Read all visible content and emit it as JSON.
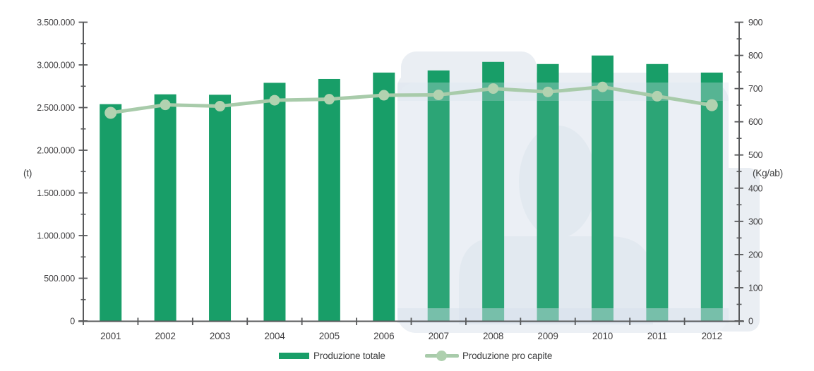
{
  "chart_data": {
    "type": "bar+line",
    "title": "",
    "categories": [
      "2001",
      "2002",
      "2003",
      "2004",
      "2005",
      "2006",
      "2007",
      "2008",
      "2009",
      "2010",
      "2011",
      "2012"
    ],
    "series": [
      {
        "name": "Produzione totale",
        "type": "bar",
        "axis": "left",
        "unit": "t",
        "color": "#189e68",
        "values": [
          2540000,
          2655000,
          2650000,
          2790000,
          2835000,
          2910000,
          2935000,
          3035000,
          3010000,
          3110000,
          3010000,
          2910000
        ]
      },
      {
        "name": "Produzione pro capite",
        "type": "line",
        "axis": "right",
        "unit": "Kg/ab",
        "color": "#a8cbaa",
        "marker_color": "#b2d2b0",
        "values": [
          627,
          651,
          647,
          665,
          668,
          680,
          681,
          700,
          690,
          705,
          677,
          650
        ]
      }
    ],
    "left_axis": {
      "label": "(t)",
      "min": 0,
      "max": 3500000,
      "major_step": 500000,
      "minor_step": 250000,
      "tick_labels": [
        "0",
        "500.000",
        "1.000.000",
        "1.500.000",
        "2.000.000",
        "2.500.000",
        "3.000.000",
        "3.500.000"
      ]
    },
    "right_axis": {
      "label": "(Kg/ab)",
      "min": 0,
      "max": 900,
      "major_step": 100,
      "minor_step": 50,
      "tick_labels": [
        "0",
        "100",
        "200",
        "300",
        "400",
        "500",
        "600",
        "700",
        "800",
        "900"
      ]
    },
    "legend_position": "bottom",
    "grid": false
  },
  "colors": {
    "bar": "#189e68",
    "line": "#a8cbaa",
    "marker": "#b2d2b0",
    "axis": "#58595b",
    "tick_text": "#414042",
    "watermark_light": "#eaeef3",
    "watermark_mid": "#ecf0f5",
    "watermark_dark": "#e3e9f0",
    "background": "#ffffff"
  }
}
